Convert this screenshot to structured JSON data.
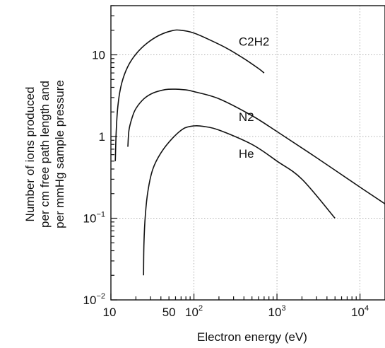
{
  "chart_data": {
    "type": "line",
    "xlabel": "Electron energy (eV)",
    "ylabel": [
      "Number of ions produced",
      "per cm free path length and",
      "per mmHg sample pressure"
    ],
    "x_scale": "log",
    "y_scale": "log",
    "xlim": [
      10,
      20000
    ],
    "ylim": [
      0.01,
      40
    ],
    "x_ticks": [
      {
        "value": 10,
        "base": "10",
        "exp": ""
      },
      {
        "value": 50,
        "base": "50",
        "exp": ""
      },
      {
        "value": 100,
        "base": "10",
        "exp": "2"
      },
      {
        "value": 1000,
        "base": "10",
        "exp": "3"
      },
      {
        "value": 10000,
        "base": "10",
        "exp": "4"
      }
    ],
    "y_ticks": [
      {
        "value": 0.01,
        "base": "10",
        "exp": "−2"
      },
      {
        "value": 0.1,
        "base": "10",
        "exp": "−1"
      },
      {
        "value": 1,
        "base": "1",
        "exp": ""
      },
      {
        "value": 10,
        "base": "10",
        "exp": ""
      }
    ],
    "grid": true,
    "series": [
      {
        "name": "C2H2",
        "label_at": [
          700,
          13
        ],
        "x": [
          11.3,
          11.6,
          12.2,
          13.5,
          16,
          20,
          27,
          38,
          55,
          70,
          100,
          150,
          250,
          400,
          600,
          700
        ],
        "y": [
          0.5,
          1.2,
          2.5,
          4.5,
          7.2,
          10.2,
          13.8,
          17.3,
          19.8,
          20.0,
          18.5,
          15.5,
          12.0,
          9.0,
          6.8,
          6.0
        ]
      },
      {
        "name": "N2",
        "label_at": [
          700,
          1.55
        ],
        "x": [
          16,
          16.5,
          18,
          20,
          25,
          32,
          45,
          60,
          80,
          100,
          200,
          500,
          1000,
          3000,
          10000,
          20000
        ],
        "y": [
          0.75,
          1.2,
          1.7,
          2.2,
          2.9,
          3.4,
          3.75,
          3.8,
          3.72,
          3.55,
          2.9,
          1.8,
          1.15,
          0.55,
          0.24,
          0.15
        ]
      },
      {
        "name": "He",
        "label_at": [
          700,
          0.55
        ],
        "x": [
          24.7,
          25,
          26,
          28,
          32,
          40,
          55,
          75,
          100,
          130,
          200,
          500,
          1000,
          2000,
          5000
        ],
        "y": [
          0.02,
          0.05,
          0.11,
          0.22,
          0.4,
          0.63,
          0.95,
          1.25,
          1.35,
          1.33,
          1.2,
          0.8,
          0.5,
          0.3,
          0.1
        ]
      }
    ]
  }
}
